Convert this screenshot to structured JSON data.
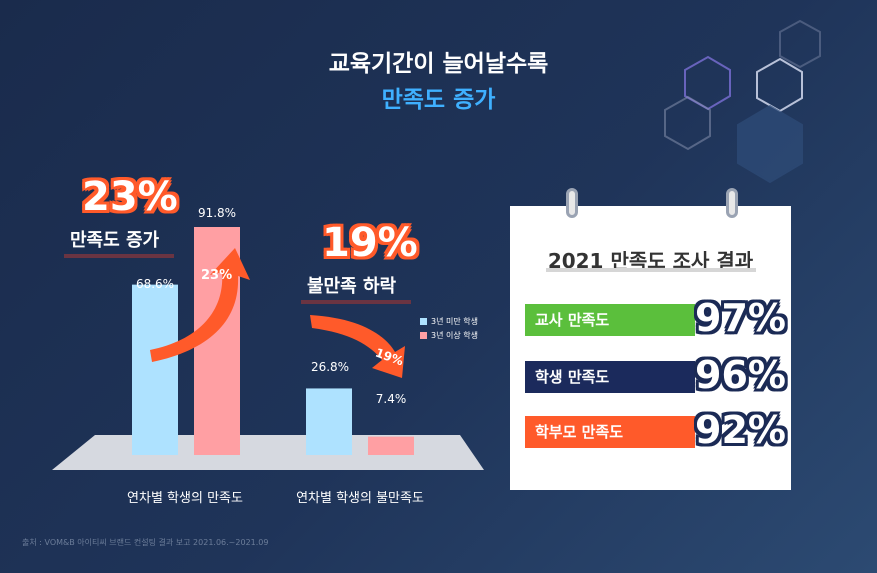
{
  "header": {
    "title_line1": "교육기간이 늘어날수록",
    "title_line2": "만족도 증가"
  },
  "chart_data": {
    "type": "bar",
    "categories": [
      "연차별 학생의 만족도",
      "연차별 학생의 불만족도"
    ],
    "series": [
      {
        "name": "3년 미만 학생",
        "values": [
          68.6,
          26.8
        ],
        "labels": [
          "68.6%",
          "26.8%"
        ],
        "color": "#aee2ff"
      },
      {
        "name": "3년 이상 학생",
        "values": [
          91.8,
          7.4
        ],
        "labels": [
          "91.8%",
          "7.4%"
        ],
        "color": "#ff9fa3"
      }
    ],
    "ylim": [
      0,
      100
    ]
  },
  "annotations": {
    "left_big": "23%",
    "left_tag": "만족도 증가",
    "left_arrow": "23%",
    "right_big": "19%",
    "right_tag": "불만족 하락",
    "right_arrow": "19%"
  },
  "card": {
    "title": "2021 만족도 조사 결과",
    "rows": [
      {
        "label": "교사 만족도",
        "pct": "97%",
        "color": "#5bbf3c"
      },
      {
        "label": "학생 만족도",
        "pct": "96%",
        "color": "#1b2a5c"
      },
      {
        "label": "학부모 만족도",
        "pct": "92%",
        "color": "#ff5a2a"
      }
    ]
  },
  "footer": {
    "source": "출처 : VOM&B 아이티씨 브랜드 컨설팅 결과 보고 2021.06.~2021.09"
  },
  "colors": {
    "accent_orange": "#ff5a2a",
    "title_blue": "#3fb0ff"
  }
}
